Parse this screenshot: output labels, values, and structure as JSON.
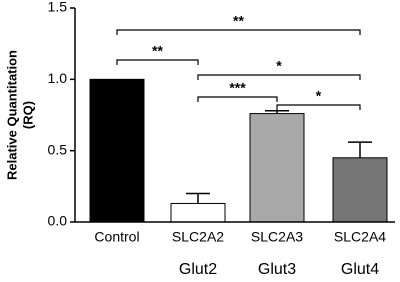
{
  "chart_data": {
    "type": "bar",
    "y_label": [
      "Relative Quantitation",
      "(RQ)"
    ],
    "categories": [
      "Control",
      "SLC2A2",
      "SLC2A3",
      "SLC2A4"
    ],
    "sublabels": [
      null,
      "Glut2",
      "Glut3",
      "Glut4"
    ],
    "values": [
      1.0,
      0.13,
      0.76,
      0.45
    ],
    "errors": [
      null,
      0.07,
      0.02,
      0.11
    ],
    "colors": [
      "#000000",
      "#ffffff",
      "#a8a8a8",
      "#767676"
    ],
    "ylim": [
      0,
      1.5
    ],
    "yticks": [
      {
        "value": 0,
        "label": "0.0"
      },
      0.5,
      {
        "value": 1,
        "label": "1.0"
      },
      1.5
    ],
    "significance": [
      {
        "from": 0,
        "to": 3,
        "label": "**"
      },
      {
        "from": 0,
        "to": 1,
        "label": "**"
      },
      {
        "from": 1,
        "to": 3,
        "label": "*"
      },
      {
        "from": 1,
        "to": 2,
        "label": "***"
      },
      {
        "from": 2,
        "to": 3,
        "label": "*"
      }
    ]
  }
}
